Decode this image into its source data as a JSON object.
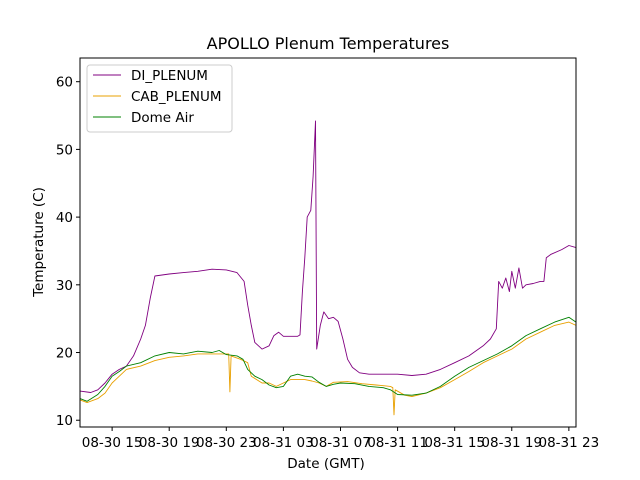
{
  "chart_data": {
    "type": "line",
    "title": "APOLLO Plenum Temperatures",
    "xlabel": "Date (GMT)",
    "ylabel": "Temperature (C)",
    "x_range": [
      "08-30 12:45",
      "08-31 23:30"
    ],
    "ylim": [
      9,
      63.5
    ],
    "y_ticks": [
      10,
      20,
      30,
      40,
      50,
      60
    ],
    "x_ticks": [
      {
        "label": "08-30 15",
        "time": "08-30 15:00"
      },
      {
        "label": "08-30 19",
        "time": "08-30 19:00"
      },
      {
        "label": "08-30 23",
        "time": "08-30 23:00"
      },
      {
        "label": "08-31 03",
        "time": "08-31 03:00"
      },
      {
        "label": "08-31 07",
        "time": "08-31 07:00"
      },
      {
        "label": "08-31 11",
        "time": "08-31 11:00"
      },
      {
        "label": "08-31 15",
        "time": "08-31 15:00"
      },
      {
        "label": "08-31 19",
        "time": "08-31 19:00"
      },
      {
        "label": "08-31 23",
        "time": "08-31 23:00"
      }
    ],
    "legend_position": "top-left",
    "grid": false,
    "series": [
      {
        "name": "DI_PLENUM",
        "color": "#800080",
        "points": [
          [
            "08-30 12:45",
            14.3
          ],
          [
            "08-30 13:30",
            14.1
          ],
          [
            "08-30 14:00",
            14.5
          ],
          [
            "08-30 14:30",
            15.5
          ],
          [
            "08-30 15:00",
            16.8
          ],
          [
            "08-30 15:30",
            17.5
          ],
          [
            "08-30 16:00",
            18.0
          ],
          [
            "08-30 16:30",
            19.5
          ],
          [
            "08-30 17:00",
            22.0
          ],
          [
            "08-30 17:20",
            24.0
          ],
          [
            "08-30 17:40",
            28.0
          ],
          [
            "08-30 18:00",
            31.3
          ],
          [
            "08-30 19:00",
            31.6
          ],
          [
            "08-30 20:00",
            31.8
          ],
          [
            "08-30 21:00",
            32.0
          ],
          [
            "08-30 22:00",
            32.3
          ],
          [
            "08-30 23:00",
            32.2
          ],
          [
            "08-30 23:45",
            31.8
          ],
          [
            "08-31 00:15",
            30.5
          ],
          [
            "08-31 00:30",
            27.0
          ],
          [
            "08-31 00:45",
            24.0
          ],
          [
            "08-31 01:00",
            21.5
          ],
          [
            "08-31 01:30",
            20.5
          ],
          [
            "08-31 02:00",
            21.0
          ],
          [
            "08-31 02:20",
            22.5
          ],
          [
            "08-31 02:40",
            23.0
          ],
          [
            "08-31 03:00",
            22.4
          ],
          [
            "08-31 04:00",
            22.4
          ],
          [
            "08-31 04:10",
            22.6
          ],
          [
            "08-31 04:20",
            29.0
          ],
          [
            "08-31 04:30",
            34.0
          ],
          [
            "08-31 04:40",
            40.0
          ],
          [
            "08-31 04:55",
            41.0
          ],
          [
            "08-31 05:05",
            46.0
          ],
          [
            "08-31 05:15",
            54.2
          ],
          [
            "08-31 05:20",
            20.5
          ],
          [
            "08-31 05:35",
            24.0
          ],
          [
            "08-31 05:50",
            26.0
          ],
          [
            "08-31 06:10",
            25.0
          ],
          [
            "08-31 06:30",
            25.2
          ],
          [
            "08-31 06:50",
            24.6
          ],
          [
            "08-31 07:10",
            22.0
          ],
          [
            "08-31 07:30",
            19.0
          ],
          [
            "08-31 07:50",
            17.8
          ],
          [
            "08-31 08:20",
            17.0
          ],
          [
            "08-31 09:00",
            16.8
          ],
          [
            "08-31 10:00",
            16.8
          ],
          [
            "08-31 11:00",
            16.8
          ],
          [
            "08-31 12:00",
            16.6
          ],
          [
            "08-31 13:00",
            16.8
          ],
          [
            "08-31 14:00",
            17.5
          ],
          [
            "08-31 15:00",
            18.5
          ],
          [
            "08-31 16:00",
            19.5
          ],
          [
            "08-31 17:00",
            21.0
          ],
          [
            "08-31 17:30",
            22.0
          ],
          [
            "08-31 17:55",
            23.5
          ],
          [
            "08-31 18:05",
            30.5
          ],
          [
            "08-31 18:20",
            29.5
          ],
          [
            "08-31 18:35",
            31.0
          ],
          [
            "08-31 18:50",
            29.0
          ],
          [
            "08-31 19:00",
            32.0
          ],
          [
            "08-31 19:15",
            29.5
          ],
          [
            "08-31 19:30",
            32.5
          ],
          [
            "08-31 19:45",
            29.5
          ],
          [
            "08-31 20:00",
            30.0
          ],
          [
            "08-31 20:30",
            30.2
          ],
          [
            "08-31 21:00",
            30.5
          ],
          [
            "08-31 21:15",
            30.5
          ],
          [
            "08-31 21:25",
            34.0
          ],
          [
            "08-31 21:45",
            34.5
          ],
          [
            "08-31 22:30",
            35.2
          ],
          [
            "08-31 23:00",
            35.8
          ],
          [
            "08-31 23:30",
            35.5
          ]
        ]
      },
      {
        "name": "CAB_PLENUM",
        "color": "#e8a000",
        "points": [
          [
            "08-30 12:45",
            13.0
          ],
          [
            "08-30 13:15",
            12.6
          ],
          [
            "08-30 14:00",
            13.2
          ],
          [
            "08-30 14:30",
            14.0
          ],
          [
            "08-30 15:00",
            15.5
          ],
          [
            "08-30 15:30",
            16.5
          ],
          [
            "08-30 16:00",
            17.5
          ],
          [
            "08-30 17:00",
            18.0
          ],
          [
            "08-30 18:00",
            18.8
          ],
          [
            "08-30 19:00",
            19.3
          ],
          [
            "08-30 20:00",
            19.5
          ],
          [
            "08-30 21:00",
            19.8
          ],
          [
            "08-30 22:00",
            19.8
          ],
          [
            "08-30 23:00",
            19.8
          ],
          [
            "08-30 23:10",
            19.8
          ],
          [
            "08-30 23:15",
            14.2
          ],
          [
            "08-30 23:20",
            19.5
          ],
          [
            "08-31 00:00",
            19.0
          ],
          [
            "08-31 00:30",
            18.5
          ],
          [
            "08-31 00:45",
            16.5
          ],
          [
            "08-31 01:30",
            15.5
          ],
          [
            "08-31 02:00",
            15.5
          ],
          [
            "08-31 02:30",
            15.0
          ],
          [
            "08-31 03:30",
            16.0
          ],
          [
            "08-31 04:30",
            16.0
          ],
          [
            "08-31 05:00",
            15.8
          ],
          [
            "08-31 05:30",
            15.5
          ],
          [
            "08-31 06:00",
            15.0
          ],
          [
            "08-31 06:30",
            15.6
          ],
          [
            "08-31 07:30",
            15.7
          ],
          [
            "08-31 08:30",
            15.4
          ],
          [
            "08-31 09:30",
            15.2
          ],
          [
            "08-31 10:30",
            15.0
          ],
          [
            "08-31 10:40",
            14.8
          ],
          [
            "08-31 10:45",
            10.8
          ],
          [
            "08-31 10:50",
            14.5
          ],
          [
            "08-31 11:30",
            13.7
          ],
          [
            "08-31 12:00",
            13.5
          ],
          [
            "08-31 13:00",
            14.0
          ],
          [
            "08-31 14:00",
            14.8
          ],
          [
            "08-31 15:00",
            16.0
          ],
          [
            "08-31 16:00",
            17.2
          ],
          [
            "08-31 17:00",
            18.5
          ],
          [
            "08-31 18:00",
            19.5
          ],
          [
            "08-31 19:00",
            20.5
          ],
          [
            "08-31 20:00",
            22.0
          ],
          [
            "08-31 21:00",
            23.0
          ],
          [
            "08-31 22:00",
            24.0
          ],
          [
            "08-31 23:00",
            24.5
          ],
          [
            "08-31 23:30",
            24.0
          ]
        ]
      },
      {
        "name": "Dome Air",
        "color": "#008000",
        "points": [
          [
            "08-30 12:45",
            13.2
          ],
          [
            "08-30 13:15",
            12.8
          ],
          [
            "08-30 14:00",
            13.8
          ],
          [
            "08-30 14:30",
            15.0
          ],
          [
            "08-30 15:00",
            16.5
          ],
          [
            "08-30 15:30",
            17.2
          ],
          [
            "08-30 16:00",
            18.0
          ],
          [
            "08-30 17:00",
            18.5
          ],
          [
            "08-30 18:00",
            19.5
          ],
          [
            "08-30 19:00",
            20.0
          ],
          [
            "08-30 20:00",
            19.8
          ],
          [
            "08-30 21:00",
            20.2
          ],
          [
            "08-30 22:00",
            20.0
          ],
          [
            "08-30 22:30",
            20.3
          ],
          [
            "08-30 23:00",
            19.7
          ],
          [
            "08-30 23:45",
            19.5
          ],
          [
            "08-31 00:10",
            19.0
          ],
          [
            "08-31 00:30",
            17.5
          ],
          [
            "08-31 01:00",
            16.5
          ],
          [
            "08-31 01:30",
            16.0
          ],
          [
            "08-31 02:00",
            15.2
          ],
          [
            "08-31 02:30",
            14.8
          ],
          [
            "08-31 03:00",
            15.0
          ],
          [
            "08-31 03:30",
            16.5
          ],
          [
            "08-31 04:00",
            16.8
          ],
          [
            "08-31 04:30",
            16.5
          ],
          [
            "08-31 05:00",
            16.4
          ],
          [
            "08-31 05:30",
            15.6
          ],
          [
            "08-31 06:00",
            15.0
          ],
          [
            "08-31 06:30",
            15.3
          ],
          [
            "08-31 07:00",
            15.5
          ],
          [
            "08-31 08:00",
            15.4
          ],
          [
            "08-31 09:00",
            15.0
          ],
          [
            "08-31 10:00",
            14.8
          ],
          [
            "08-31 10:30",
            14.5
          ],
          [
            "08-31 11:00",
            13.8
          ],
          [
            "08-31 12:00",
            13.7
          ],
          [
            "08-31 13:00",
            14.0
          ],
          [
            "08-31 14:00",
            15.0
          ],
          [
            "08-31 15:00",
            16.5
          ],
          [
            "08-31 16:00",
            17.8
          ],
          [
            "08-31 17:00",
            18.8
          ],
          [
            "08-31 18:00",
            19.8
          ],
          [
            "08-31 19:00",
            21.0
          ],
          [
            "08-31 20:00",
            22.5
          ],
          [
            "08-31 21:00",
            23.5
          ],
          [
            "08-31 22:00",
            24.5
          ],
          [
            "08-31 23:00",
            25.2
          ],
          [
            "08-31 23:30",
            24.5
          ]
        ]
      }
    ]
  }
}
